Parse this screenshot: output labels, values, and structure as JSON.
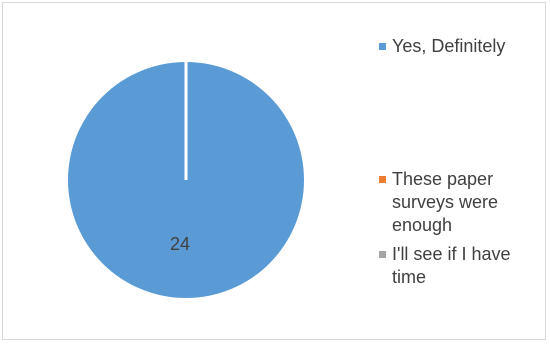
{
  "chart_data": {
    "type": "pie",
    "title": "",
    "categories": [
      "Yes, Definitely",
      "These paper surveys were enough",
      "I'll see if I have time"
    ],
    "values": [
      24,
      0,
      0
    ],
    "data_labels": [
      "24",
      "",
      ""
    ],
    "colors": [
      "#5B9BD5",
      "#ED7D31",
      "#A5A5A5"
    ],
    "legend_position": "right",
    "legend": [
      {
        "label": "Yes, Definitely",
        "color": "#5B9BD5"
      },
      {
        "label": "These paper surveys were enough",
        "color": "#ED7D31"
      },
      {
        "label": "I'll see if I have time",
        "color": "#A5A5A5"
      }
    ]
  }
}
